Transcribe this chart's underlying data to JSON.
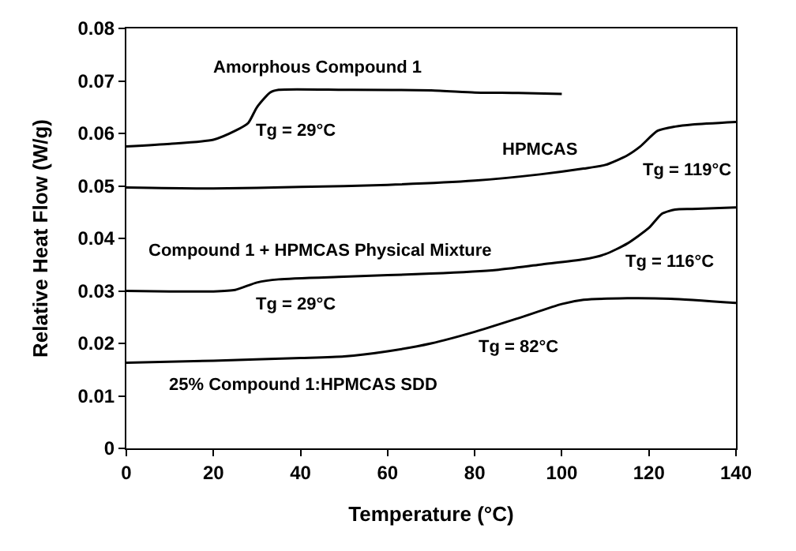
{
  "chart_data": {
    "type": "line",
    "xlabel": "Temperature (°C)",
    "ylabel": "Relative Heat Flow (W/g)",
    "xlim": [
      0,
      140
    ],
    "xticks": [
      0,
      20,
      40,
      60,
      80,
      100,
      120,
      140
    ],
    "ylim": [
      0,
      0.08
    ],
    "yticks": [
      0,
      0.01,
      0.02,
      0.03,
      0.04,
      0.05,
      0.06,
      0.07,
      0.08
    ],
    "legend": false,
    "marker": "none",
    "line_style": "solid",
    "series": [
      {
        "name": "Amorphous Compound 1",
        "color": "#000000",
        "x": [
          0,
          10,
          20,
          25,
          28,
          30,
          33,
          35,
          50,
          70,
          80,
          90,
          100
        ],
        "values": [
          0.0575,
          0.058,
          0.0588,
          0.0605,
          0.062,
          0.065,
          0.0678,
          0.0683,
          0.0683,
          0.0682,
          0.0678,
          0.0677,
          0.0675
        ]
      },
      {
        "name": "HPMCAS",
        "color": "#000000",
        "x": [
          0,
          20,
          40,
          60,
          80,
          95,
          105,
          110,
          115,
          118,
          122,
          126,
          130,
          140
        ],
        "values": [
          0.0497,
          0.0495,
          0.0498,
          0.0502,
          0.051,
          0.0522,
          0.0533,
          0.054,
          0.0558,
          0.0575,
          0.0605,
          0.0613,
          0.0617,
          0.0622
        ]
      },
      {
        "name": "Compound 1 + HPMCAS Physical Mixture",
        "color": "#000000",
        "x": [
          0,
          10,
          20,
          25,
          30,
          35,
          50,
          70,
          85,
          95,
          105,
          110,
          115,
          120,
          123,
          126,
          130,
          140
        ],
        "values": [
          0.03,
          0.0299,
          0.0299,
          0.0302,
          0.0316,
          0.0322,
          0.0327,
          0.0333,
          0.034,
          0.035,
          0.036,
          0.037,
          0.039,
          0.042,
          0.0447,
          0.0455,
          0.0456,
          0.0459
        ]
      },
      {
        "name": "25% Compound 1:HPMCAS SDD",
        "color": "#000000",
        "x": [
          0,
          20,
          40,
          50,
          60,
          70,
          80,
          90,
          100,
          105,
          115,
          125,
          140
        ],
        "values": [
          0.0163,
          0.0167,
          0.0172,
          0.0175,
          0.0185,
          0.02,
          0.0222,
          0.0248,
          0.0275,
          0.0283,
          0.0286,
          0.0285,
          0.0277
        ]
      }
    ],
    "annotations": [
      "Tg = 29°C",
      "Tg = 119°C",
      "Tg = 116°C",
      "Tg = 29°C",
      "Tg = 82°C"
    ]
  }
}
